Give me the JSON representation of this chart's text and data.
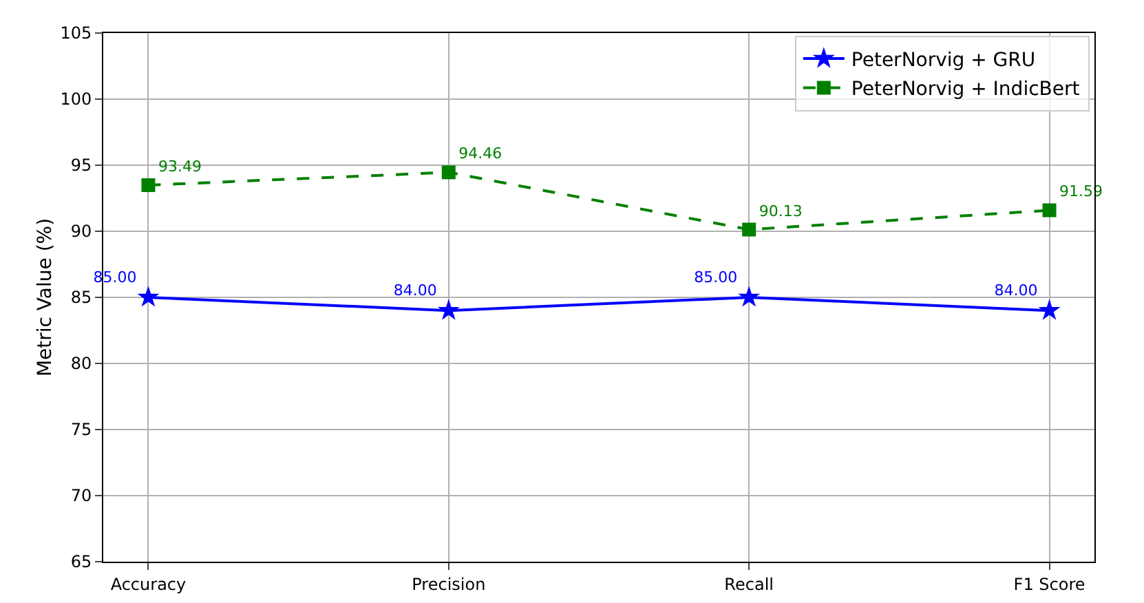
{
  "chart_data": {
    "type": "line",
    "ylabel": "Metric Value (%)",
    "categories": [
      "Accuracy",
      "Precision",
      "Recall",
      "F1 Score"
    ],
    "series": [
      {
        "name": "PeterNorvig + GRU",
        "color": "#0000ff",
        "marker": "star",
        "line_style": "solid",
        "values": [
          85.0,
          84.0,
          85.0,
          84.0
        ],
        "value_labels": [
          "85.00",
          "84.00",
          "85.00",
          "84.00"
        ]
      },
      {
        "name": "PeterNorvig + IndicBert",
        "color": "#008000",
        "marker": "square",
        "line_style": "dashed",
        "values": [
          93.49,
          94.46,
          90.13,
          91.59
        ],
        "value_labels": [
          "93.49",
          "94.46",
          "90.13",
          "91.59"
        ]
      }
    ],
    "ylim": [
      65,
      105
    ],
    "yticks": [
      65,
      70,
      75,
      80,
      85,
      90,
      95,
      100,
      105
    ],
    "grid": true,
    "legend": "top right"
  }
}
